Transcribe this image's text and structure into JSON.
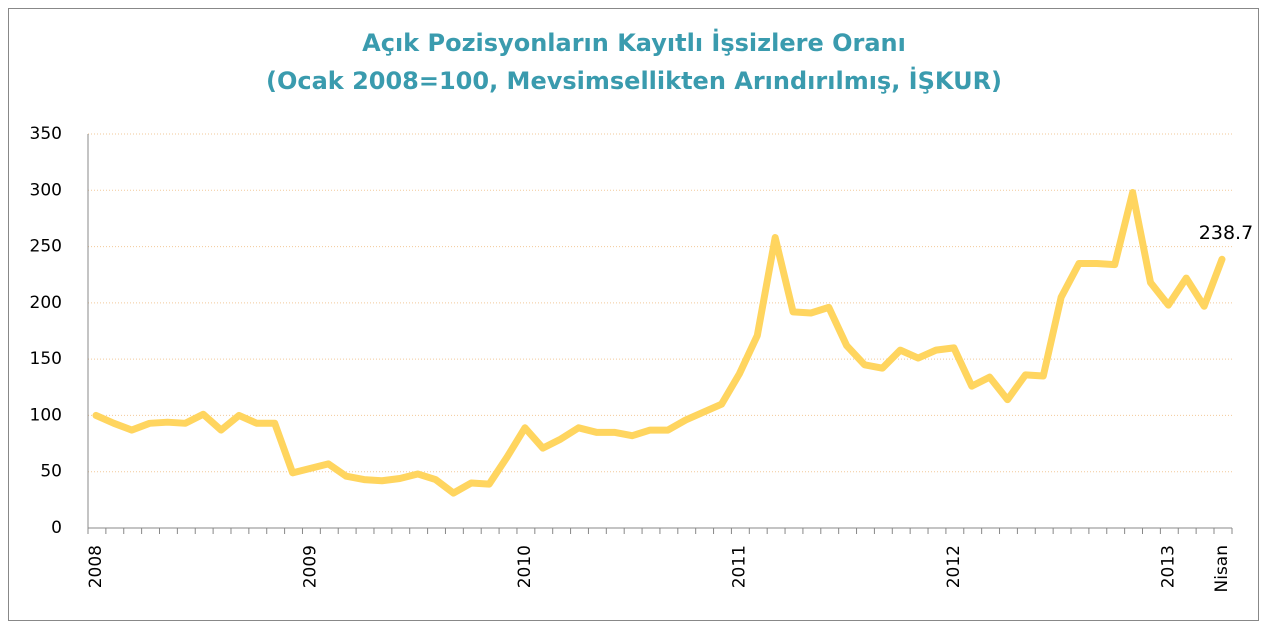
{
  "chart_data": {
    "type": "line",
    "title": "Açık Pozisyonların Kayıtlı İşsizlere Oranı",
    "subtitle": "(Ocak 2008=100, Mevsimsellikten Arındırılmış, İŞKUR)",
    "categories": [
      "2008",
      null,
      null,
      null,
      null,
      null,
      null,
      null,
      null,
      null,
      null,
      null,
      "2009",
      null,
      null,
      null,
      null,
      null,
      null,
      null,
      null,
      null,
      null,
      null,
      "2010",
      null,
      null,
      null,
      null,
      null,
      null,
      null,
      null,
      null,
      null,
      null,
      "2011",
      null,
      null,
      null,
      null,
      null,
      null,
      null,
      null,
      null,
      null,
      null,
      "2012",
      null,
      null,
      null,
      null,
      null,
      null,
      null,
      null,
      null,
      null,
      null,
      "2013",
      null,
      null,
      "Nisan"
    ],
    "series": [
      {
        "name": null,
        "color": "#ffd55f",
        "values": [
          100,
          93,
          87,
          93,
          94,
          93,
          101,
          87,
          100,
          93,
          93,
          49,
          53,
          57,
          46,
          43,
          42,
          44,
          48,
          43,
          31,
          40,
          39,
          63,
          89,
          71,
          79,
          89,
          85,
          85,
          82,
          87,
          87,
          96,
          103,
          110,
          137,
          171,
          258,
          192,
          191,
          196,
          162,
          145,
          142,
          158,
          151,
          158,
          160,
          126,
          134,
          114,
          136,
          135,
          205,
          235,
          235,
          234,
          298,
          218,
          198,
          222,
          197,
          238.7
        ]
      }
    ],
    "ylim": [
      0,
      350
    ],
    "yticks": [
      0,
      50,
      100,
      150,
      200,
      250,
      300,
      350
    ],
    "grid": true
  }
}
